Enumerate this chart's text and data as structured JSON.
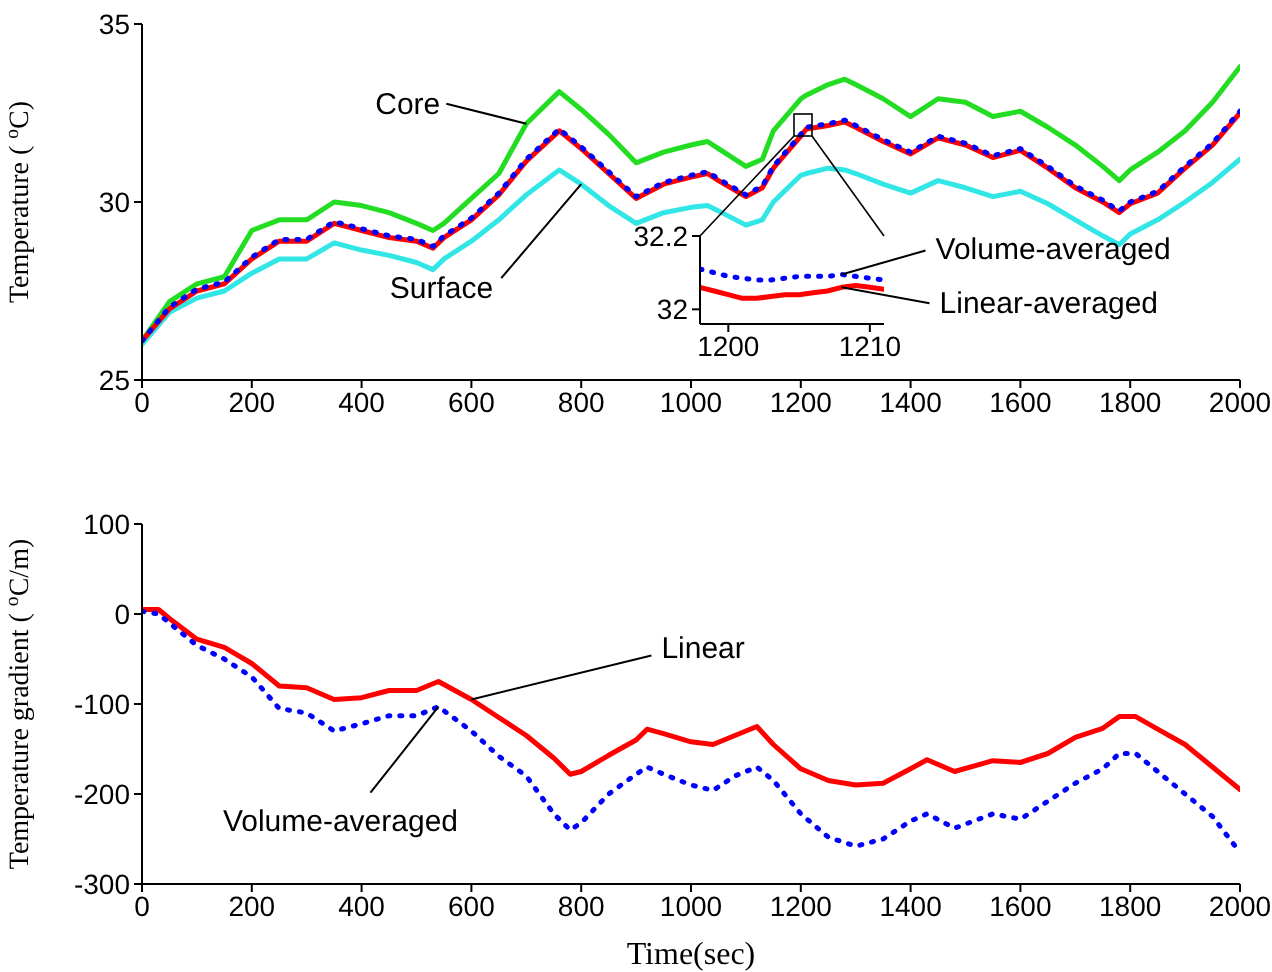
{
  "chart_data": [
    {
      "type": "line",
      "ylabel": "Temperature ( $^{o}$C)",
      "xlim": [
        0,
        2000
      ],
      "xticks": [
        0,
        200,
        400,
        600,
        800,
        1000,
        1200,
        1400,
        1600,
        1800,
        2000
      ],
      "ylim": [
        25,
        35
      ],
      "yticks": [
        25,
        30,
        35
      ],
      "x": [
        0,
        50,
        100,
        150,
        200,
        250,
        300,
        350,
        400,
        450,
        500,
        530,
        550,
        600,
        650,
        700,
        760,
        800,
        850,
        900,
        950,
        1000,
        1030,
        1050,
        1100,
        1130,
        1150,
        1200,
        1210,
        1250,
        1280,
        1300,
        1350,
        1400,
        1450,
        1500,
        1550,
        1600,
        1650,
        1700,
        1750,
        1780,
        1800,
        1850,
        1900,
        1950,
        2000
      ],
      "series": [
        {
          "name": "Core",
          "color": "#22dd22",
          "values": [
            26.1,
            27.2,
            27.7,
            27.9,
            29.2,
            29.5,
            29.5,
            30.0,
            29.9,
            29.7,
            29.4,
            29.2,
            29.4,
            30.1,
            30.8,
            32.2,
            33.1,
            32.6,
            31.9,
            31.1,
            31.4,
            31.6,
            31.7,
            31.5,
            31.0,
            31.2,
            32.0,
            32.9,
            33.0,
            33.3,
            33.45,
            33.3,
            32.9,
            32.4,
            32.9,
            32.8,
            32.4,
            32.55,
            32.1,
            31.6,
            31.0,
            30.6,
            30.9,
            31.4,
            32.0,
            32.8,
            33.8
          ]
        },
        {
          "name": "Surface",
          "color": "#33e6e6",
          "values": [
            26.0,
            26.9,
            27.3,
            27.5,
            28.0,
            28.4,
            28.4,
            28.85,
            28.65,
            28.5,
            28.3,
            28.1,
            28.4,
            28.9,
            29.5,
            30.2,
            30.9,
            30.5,
            29.9,
            29.4,
            29.7,
            29.85,
            29.9,
            29.75,
            29.35,
            29.5,
            30.0,
            30.75,
            30.8,
            30.95,
            30.9,
            30.8,
            30.5,
            30.25,
            30.6,
            30.4,
            30.15,
            30.3,
            29.95,
            29.5,
            29.05,
            28.8,
            29.1,
            29.5,
            30.0,
            30.55,
            31.2
          ]
        },
        {
          "color": "#ff0000",
          "values": [
            26.1,
            27.0,
            27.5,
            27.7,
            28.4,
            28.9,
            28.9,
            29.4,
            29.2,
            29.0,
            28.9,
            28.7,
            29.0,
            29.5,
            30.2,
            31.15,
            32.0,
            31.5,
            30.8,
            30.1,
            30.5,
            30.7,
            30.8,
            30.6,
            30.15,
            30.4,
            30.95,
            31.85,
            32.05,
            32.15,
            32.25,
            32.1,
            31.7,
            31.35,
            31.8,
            31.6,
            31.25,
            31.45,
            30.95,
            30.4,
            30.0,
            29.7,
            29.95,
            30.25,
            30.95,
            31.6,
            32.5
          ]
        },
        {
          "color": "#0000ff",
          "line_style": "dotted",
          "values": [
            26.1,
            27.05,
            27.55,
            27.75,
            28.45,
            28.95,
            28.95,
            29.45,
            29.25,
            29.05,
            28.95,
            28.75,
            29.05,
            29.55,
            30.25,
            31.2,
            32.05,
            31.55,
            30.85,
            30.15,
            30.55,
            30.75,
            30.85,
            30.65,
            30.2,
            30.45,
            31.0,
            31.9,
            32.1,
            32.2,
            32.3,
            32.15,
            31.75,
            31.4,
            31.85,
            31.65,
            31.3,
            31.5,
            31.0,
            30.45,
            30.05,
            29.75,
            30.0,
            30.3,
            31.0,
            31.65,
            32.55
          ]
        }
      ]
    },
    {
      "type": "line",
      "xlim": [
        1198,
        1211
      ],
      "xticks": [
        1200,
        1210
      ],
      "ylim": [
        31.96,
        32.2
      ],
      "yticks": [
        32,
        32.2
      ],
      "x": [
        1198,
        1199,
        1200,
        1201,
        1202,
        1203,
        1204,
        1205,
        1206,
        1207,
        1208,
        1209,
        1210,
        1211
      ],
      "series": [
        {
          "name": "Linear-averaged",
          "color": "#ff0000",
          "values": [
            32.06,
            32.05,
            32.04,
            32.03,
            32.03,
            32.035,
            32.04,
            32.04,
            32.045,
            32.05,
            32.06,
            32.065,
            32.06,
            32.055
          ]
        },
        {
          "name": "Volume-averaged",
          "color": "#0000ff",
          "line_style": "dotted",
          "values": [
            32.11,
            32.1,
            32.09,
            32.085,
            32.08,
            32.08,
            32.085,
            32.09,
            32.09,
            32.09,
            32.095,
            32.09,
            32.085,
            32.08
          ]
        }
      ]
    },
    {
      "type": "line",
      "xlabel": "Time(sec)",
      "ylabel": "Temperature gradient ( $^{o}$C/m)",
      "xlim": [
        0,
        2000
      ],
      "xticks": [
        0,
        200,
        400,
        600,
        800,
        1000,
        1200,
        1400,
        1600,
        1800,
        2000
      ],
      "ylim": [
        -300,
        100
      ],
      "yticks": [
        -300,
        -200,
        -100,
        0,
        100
      ],
      "x": [
        0,
        30,
        50,
        100,
        150,
        200,
        250,
        300,
        350,
        400,
        450,
        500,
        540,
        600,
        650,
        700,
        750,
        780,
        800,
        850,
        900,
        920,
        950,
        1000,
        1040,
        1080,
        1120,
        1150,
        1200,
        1250,
        1300,
        1350,
        1400,
        1430,
        1480,
        1550,
        1600,
        1650,
        1700,
        1750,
        1780,
        1810,
        1850,
        1900,
        1950,
        2000
      ],
      "series": [
        {
          "name": "Linear",
          "color": "#ff0000",
          "values": [
            5,
            5,
            -5,
            -28,
            -37,
            -55,
            -80,
            -82,
            -95,
            -93,
            -85,
            -85,
            -75,
            -95,
            -115,
            -135,
            -160,
            -178,
            -175,
            -157,
            -140,
            -128,
            -133,
            -142,
            -145,
            -135,
            -125,
            -145,
            -172,
            -185,
            -190,
            -188,
            -172,
            -162,
            -175,
            -163,
            -165,
            -155,
            -137,
            -127,
            -114,
            -114,
            -128,
            -145,
            -170,
            -195
          ]
        },
        {
          "name": "Volume-averaged",
          "color": "#0000ff",
          "line_style": "dotted",
          "values": [
            3,
            0,
            -10,
            -35,
            -50,
            -70,
            -105,
            -110,
            -130,
            -122,
            -113,
            -113,
            -103,
            -130,
            -158,
            -180,
            -222,
            -240,
            -232,
            -200,
            -178,
            -170,
            -178,
            -190,
            -196,
            -180,
            -170,
            -185,
            -222,
            -248,
            -258,
            -250,
            -230,
            -222,
            -238,
            -222,
            -228,
            -208,
            -188,
            -172,
            -155,
            -155,
            -175,
            -200,
            -225,
            -265
          ]
        }
      ]
    }
  ]
}
